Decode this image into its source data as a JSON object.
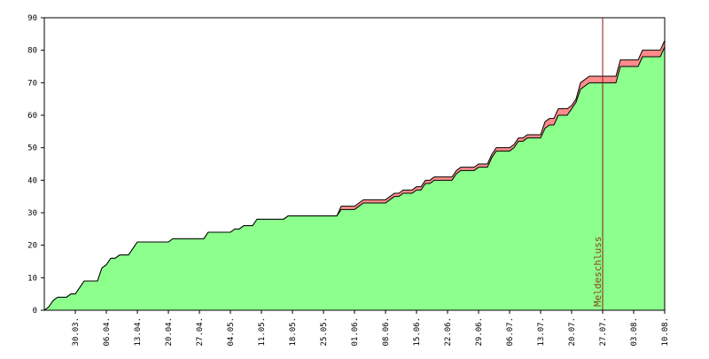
{
  "chart_data": {
    "type": "area",
    "title": "",
    "xlabel": "",
    "ylabel": "",
    "ylim": [
      0,
      90
    ],
    "y_ticks": [
      0,
      10,
      20,
      30,
      40,
      50,
      60,
      70,
      80,
      90
    ],
    "x_tick_labels": [
      "30.03.",
      "06.04.",
      "13.04.",
      "20.04.",
      "27.04.",
      "04.05.",
      "11.05.",
      "18.05.",
      "25.05.",
      "01.06.",
      "08.06.",
      "15.06.",
      "22.06.",
      "29.06.",
      "06.07.",
      "13.07.",
      "20.07.",
      "27.07.",
      "03.08.",
      "10.08."
    ],
    "x_tick_positions": [
      7,
      14,
      21,
      28,
      35,
      42,
      49,
      56,
      63,
      70,
      77,
      84,
      91,
      98,
      105,
      112,
      119,
      126,
      133,
      140
    ],
    "xlim": [
      0,
      140
    ],
    "grid": false,
    "colors": {
      "total_fill": "#ff8c8c",
      "paid_fill": "#8cff8c",
      "outline": "#000000",
      "deadline_line": "#8b1a1a",
      "deadline_text": "#8b4513"
    },
    "x": [
      0,
      1,
      2,
      3,
      4,
      5,
      6,
      7,
      8,
      9,
      10,
      11,
      12,
      13,
      14,
      15,
      16,
      17,
      18,
      19,
      20,
      21,
      22,
      23,
      24,
      25,
      26,
      27,
      28,
      29,
      30,
      31,
      32,
      33,
      34,
      35,
      36,
      37,
      38,
      39,
      40,
      41,
      42,
      43,
      44,
      45,
      46,
      47,
      48,
      49,
      50,
      51,
      52,
      53,
      54,
      55,
      56,
      57,
      58,
      59,
      60,
      61,
      62,
      63,
      64,
      65,
      66,
      67,
      68,
      69,
      70,
      71,
      72,
      73,
      74,
      75,
      76,
      77,
      78,
      79,
      80,
      81,
      82,
      83,
      84,
      85,
      86,
      87,
      88,
      89,
      90,
      91,
      92,
      93,
      94,
      95,
      96,
      97,
      98,
      99,
      100,
      101,
      102,
      103,
      104,
      105,
      106,
      107,
      108,
      109,
      110,
      111,
      112,
      113,
      114,
      115,
      116,
      117,
      118,
      119,
      120,
      121,
      122,
      123,
      124,
      125,
      126,
      127,
      128,
      129,
      130,
      131,
      132,
      133,
      134,
      135,
      136,
      137,
      138,
      139,
      140
    ],
    "series": [
      {
        "values": [
          0,
          1,
          3,
          4,
          4,
          4,
          5,
          5,
          7,
          9,
          9,
          9,
          9,
          13,
          14,
          16,
          16,
          17,
          17,
          17,
          19,
          21,
          21,
          21,
          21,
          21,
          21,
          21,
          21,
          22,
          22,
          22,
          22,
          22,
          22,
          22,
          22,
          24,
          24,
          24,
          24,
          24,
          24,
          25,
          25,
          26,
          26,
          26,
          28,
          28,
          28,
          28,
          28,
          28,
          28,
          29,
          29,
          29,
          29,
          29,
          29,
          29,
          29,
          29,
          29,
          29,
          29,
          32,
          32,
          32,
          32,
          33,
          34,
          34,
          34,
          34,
          34,
          34,
          35,
          36,
          36,
          37,
          37,
          37,
          38,
          38,
          40,
          40,
          41,
          41,
          41,
          41,
          41,
          43,
          44,
          44,
          44,
          44,
          45,
          45,
          45,
          48,
          50,
          50,
          50,
          50,
          51,
          53,
          53,
          54,
          54,
          54,
          54,
          58,
          59,
          59,
          62,
          62,
          62,
          63,
          65,
          70,
          71,
          72,
          72,
          72,
          72,
          72,
          72,
          72,
          77,
          77,
          77,
          77,
          77,
          80,
          80,
          80,
          80,
          80,
          83
        ],
        "fill": "#ff8c8c"
      },
      {
        "values": [
          0,
          1,
          3,
          4,
          4,
          4,
          5,
          5,
          7,
          9,
          9,
          9,
          9,
          13,
          14,
          16,
          16,
          17,
          17,
          17,
          19,
          21,
          21,
          21,
          21,
          21,
          21,
          21,
          21,
          22,
          22,
          22,
          22,
          22,
          22,
          22,
          22,
          24,
          24,
          24,
          24,
          24,
          24,
          25,
          25,
          26,
          26,
          26,
          28,
          28,
          28,
          28,
          28,
          28,
          28,
          29,
          29,
          29,
          29,
          29,
          29,
          29,
          29,
          29,
          29,
          29,
          29,
          31,
          31,
          31,
          31,
          32,
          33,
          33,
          33,
          33,
          33,
          33,
          34,
          35,
          35,
          36,
          36,
          36,
          37,
          37,
          39,
          39,
          40,
          40,
          40,
          40,
          40,
          42,
          43,
          43,
          43,
          43,
          44,
          44,
          44,
          47,
          49,
          49,
          49,
          49,
          50,
          52,
          52,
          53,
          53,
          53,
          53,
          56,
          57,
          57,
          60,
          60,
          60,
          62,
          64,
          68,
          69,
          70,
          70,
          70,
          70,
          70,
          70,
          70,
          75,
          75,
          75,
          75,
          75,
          78,
          78,
          78,
          78,
          78,
          81
        ],
        "fill": "#8cff8c"
      }
    ],
    "annotations": [
      {
        "x": 126,
        "label": "Meldeschluss"
      }
    ]
  }
}
